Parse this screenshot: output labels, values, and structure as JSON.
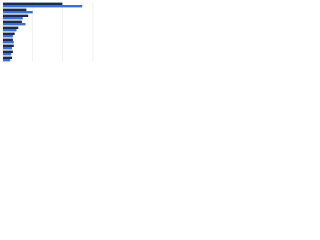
{
  "chart_data": {
    "type": "hbar",
    "categories": [
      null,
      null,
      null,
      null,
      null,
      null,
      null,
      null,
      null,
      null
    ],
    "series": [
      {
        "color": "#1b2a4e",
        "values": [
          66,
          26,
          28,
          21,
          17,
          13,
          11,
          12,
          11,
          10
        ]
      },
      {
        "color": "#3a6fd8",
        "values": [
          88,
          33,
          22,
          25,
          15,
          11,
          12,
          10,
          9,
          8
        ]
      }
    ],
    "xlim": [
      0,
      100
    ],
    "xticks": [
      0,
      33,
      66,
      100
    ],
    "grid": true
  }
}
